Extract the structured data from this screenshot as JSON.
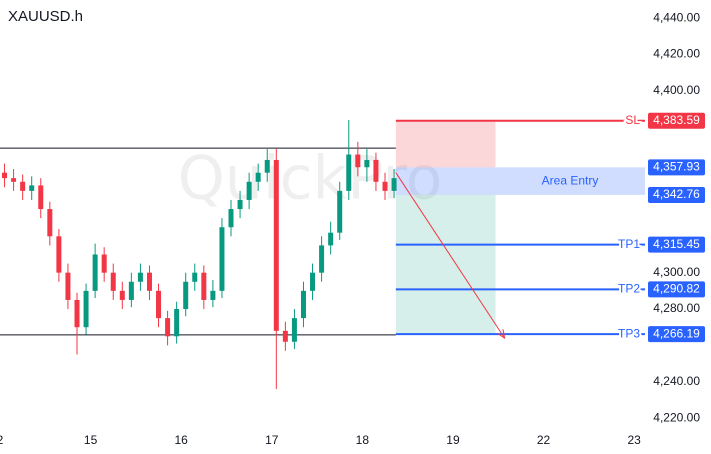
{
  "chart_data": {
    "type": "candlestick",
    "title": "XAUUSD.h",
    "watermark": "QuickPro",
    "xlim": [
      0,
      71.2
    ],
    "ylim": [
      4214,
      4450
    ],
    "xticks": [
      {
        "value": 0,
        "label": "2"
      },
      {
        "value": 10,
        "label": "15"
      },
      {
        "value": 20,
        "label": "16"
      },
      {
        "value": 30,
        "label": "17"
      },
      {
        "value": 40,
        "label": "18"
      },
      {
        "value": 50,
        "label": "19"
      },
      {
        "value": 60,
        "label": "22"
      },
      {
        "value": 70,
        "label": "23"
      }
    ],
    "yticks": [
      {
        "value": 4440,
        "label": "4,440.00"
      },
      {
        "value": 4420,
        "label": "4,420.00"
      },
      {
        "value": 4400,
        "label": "4,400.00"
      },
      {
        "value": 4300,
        "label": "4,300.00"
      },
      {
        "value": 4280,
        "label": "4,280.00"
      },
      {
        "value": 4240,
        "label": "4,240.00"
      },
      {
        "value": 4220,
        "label": "4,220.00"
      }
    ],
    "up_color": "#089981",
    "down_color": "#f23645",
    "x": [
      0.5,
      1.5,
      2.5,
      3.5,
      4.5,
      5.5,
      6.5,
      7.5,
      8.5,
      9.5,
      10.5,
      11.5,
      12.5,
      13.5,
      14.5,
      15.5,
      16.5,
      17.5,
      18.5,
      19.5,
      20.5,
      21.5,
      22.5,
      23.5,
      24.5,
      25.5,
      26.5,
      27.5,
      28.5,
      29.5,
      30.5,
      31.5,
      32.5,
      33.5,
      34.5,
      35.5,
      36.5,
      37.5,
      38.5,
      39.5,
      40.5,
      41.5,
      42.5,
      43.5
    ],
    "open": [
      4355,
      4352,
      4350,
      4345,
      4348,
      4335,
      4320,
      4300,
      4285,
      4270,
      4290,
      4310,
      4300,
      4290,
      4285,
      4295,
      4300,
      4290,
      4275,
      4265,
      4280,
      4295,
      4300,
      4285,
      4290,
      4325,
      4335,
      4340,
      4350,
      4355,
      4362,
      4268,
      4262,
      4275,
      4290,
      4300,
      4315,
      4322,
      4345,
      4365,
      4358,
      4362,
      4350,
      4345
    ],
    "high": [
      4360,
      4357,
      4354,
      4353,
      4352,
      4339,
      4324,
      4305,
      4289,
      4294,
      4316,
      4314,
      4305,
      4295,
      4300,
      4305,
      4304,
      4294,
      4279,
      4284,
      4300,
      4305,
      4304,
      4296,
      4330,
      4340,
      4345,
      4355,
      4360,
      4368,
      4368,
      4273,
      4280,
      4295,
      4305,
      4320,
      4328,
      4350,
      4384,
      4372,
      4368,
      4366,
      4355,
      4357
    ],
    "low": [
      4347,
      4345,
      4340,
      4340,
      4330,
      4315,
      4295,
      4280,
      4255,
      4266,
      4286,
      4295,
      4285,
      4280,
      4281,
      4290,
      4285,
      4270,
      4260,
      4261,
      4276,
      4290,
      4280,
      4281,
      4286,
      4320,
      4330,
      4335,
      4345,
      4350,
      4236,
      4257,
      4258,
      4270,
      4285,
      4295,
      4310,
      4318,
      4340,
      4353,
      4350,
      4345,
      4340,
      4341
    ],
    "close": [
      4352,
      4350,
      4345,
      4348,
      4335,
      4320,
      4300,
      4285,
      4270,
      4290,
      4310,
      4300,
      4290,
      4285,
      4295,
      4300,
      4290,
      4275,
      4265,
      4280,
      4295,
      4300,
      4285,
      4290,
      4325,
      4335,
      4340,
      4350,
      4355,
      4362,
      4268,
      4262,
      4275,
      4290,
      4300,
      4315,
      4322,
      4345,
      4365,
      4358,
      4362,
      4350,
      4345,
      4352
    ],
    "horizontal_lines": [
      4368.5,
      4265.8
    ],
    "projection_x": [
      43.7,
      54.7
    ],
    "arrow": {
      "x": [
        43.7,
        55.7
      ],
      "y": [
        4355,
        4264
      ]
    },
    "entry_zone": {
      "name": "Area Entry",
      "values": [
        4357.93,
        4342.76
      ],
      "value_labels": [
        "4,357.93",
        "4,342.76"
      ],
      "color": "#2962ff"
    },
    "levels": [
      {
        "name": "SL",
        "value": 4383.59,
        "value_label": "4,383.59",
        "color": "#f23645"
      },
      {
        "name": "TP1",
        "value": 4315.45,
        "value_label": "4,315.45",
        "color": "#2962ff"
      },
      {
        "name": "TP2",
        "value": 4290.82,
        "value_label": "4,290.82",
        "color": "#2962ff"
      },
      {
        "name": "TP3",
        "value": 4266.19,
        "value_label": "4,266.19",
        "color": "#2962ff"
      }
    ]
  }
}
